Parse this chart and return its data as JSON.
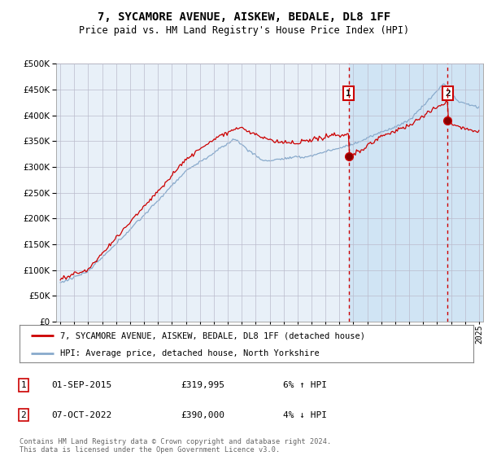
{
  "title": "7, SYCAMORE AVENUE, AISKEW, BEDALE, DL8 1FF",
  "subtitle": "Price paid vs. HM Land Registry's House Price Index (HPI)",
  "legend_line1": "7, SYCAMORE AVENUE, AISKEW, BEDALE, DL8 1FF (detached house)",
  "legend_line2": "HPI: Average price, detached house, North Yorkshire",
  "annotation1_date": "01-SEP-2015",
  "annotation1_price": "£319,995",
  "annotation1_hpi": "6% ↑ HPI",
  "annotation2_date": "07-OCT-2022",
  "annotation2_price": "£390,000",
  "annotation2_hpi": "4% ↓ HPI",
  "footer": "Contains HM Land Registry data © Crown copyright and database right 2024.\nThis data is licensed under the Open Government Licence v3.0.",
  "price_color": "#cc0000",
  "hpi_color": "#88aacc",
  "bg_color": "#ffffff",
  "plot_bg_color": "#ddeeff",
  "shaded_bg_color": "#ddeeff",
  "unshaded_bg_color": "#e8eef8",
  "grid_color": "#bbbbcc",
  "ylim": [
    0,
    500000
  ],
  "yticks": [
    0,
    50000,
    100000,
    150000,
    200000,
    250000,
    300000,
    350000,
    400000,
    450000,
    500000
  ],
  "x_start_year": 1995,
  "x_end_year": 2025,
  "sale1_year": 2015.67,
  "sale2_year": 2022.75,
  "sale1_price": 319995,
  "sale2_price": 390000
}
